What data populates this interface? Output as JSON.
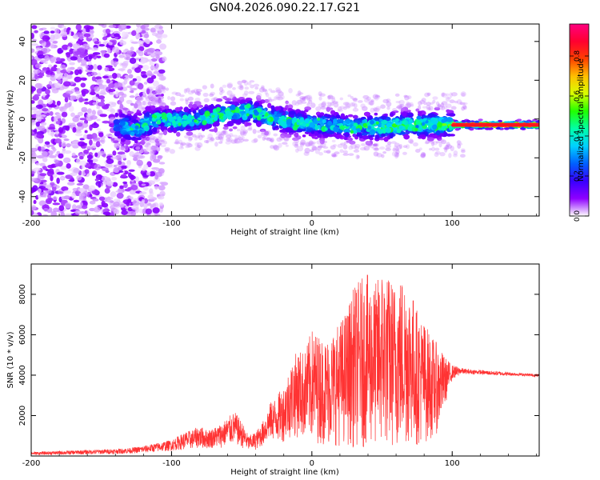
{
  "figure_title": "GN04.2026.090.22.17.G21",
  "chart_data": [
    {
      "type": "heatmap",
      "title": "GN04.2026.090.22.17.G21",
      "xlabel": "Height of straight line (km)",
      "ylabel": "Frequency (Hz)",
      "xlim": [
        -200,
        162
      ],
      "ylim": [
        -50,
        49
      ],
      "xticks": [
        -200,
        -100,
        0,
        100
      ],
      "yticks": [
        -40,
        -20,
        0,
        20,
        40
      ],
      "grid": false,
      "colorbar": {
        "label": "Normalized spectral amplitude",
        "range": [
          0,
          0.96
        ],
        "ticks": [
          "0.0",
          "0.2",
          "0.4",
          "0.6",
          "0.8"
        ],
        "ticks_values": [
          0,
          0.2,
          0.4,
          0.6,
          0.8
        ],
        "colormap": "rainbow",
        "stops": [
          "#ffffff",
          "#8e00ff",
          "#3800ff",
          "#0060ff",
          "#00d0ff",
          "#00ffa8",
          "#20ff00",
          "#d8ff00",
          "#ffc000",
          "#ff4000",
          "#ff0030",
          "#ff0080"
        ]
      },
      "ridge": {
        "description_points_x": [
          -200,
          -150,
          -125,
          -110,
          -95,
          -80,
          -60,
          -45,
          -30,
          -10,
          10,
          30,
          50,
          70,
          90,
          110,
          130,
          162
        ],
        "description_points_y": [
          0,
          -2,
          -5,
          0,
          -1,
          0,
          3,
          4,
          1,
          -2,
          -3,
          -4,
          -4,
          -3,
          -3,
          -3,
          -3,
          -3
        ]
      }
    },
    {
      "type": "line",
      "xlabel": "Height of straight line (km)",
      "ylabel": "SNR (10 * v/v)",
      "xlim": [
        -200,
        162
      ],
      "ylim": [
        0,
        9500
      ],
      "xticks": [
        -200,
        -100,
        0,
        100
      ],
      "yticks": [
        2000,
        4000,
        6000,
        8000
      ],
      "grid": false,
      "series": [
        {
          "color": "#ff3333",
          "x": [
            -200,
            -180,
            -160,
            -140,
            -130,
            -120,
            -110,
            -100,
            -95,
            -90,
            -85,
            -80,
            -75,
            -70,
            -65,
            -60,
            -55,
            -50,
            -45,
            -40,
            -35,
            -30,
            -25,
            -20,
            -15,
            -10,
            -5,
            0,
            5,
            10,
            15,
            20,
            25,
            30,
            35,
            40,
            45,
            50,
            55,
            60,
            65,
            70,
            75,
            80,
            85,
            90,
            95,
            100,
            105,
            110,
            120,
            130,
            140,
            150,
            162
          ],
          "envelope_max": [
            200,
            250,
            300,
            350,
            400,
            500,
            650,
            800,
            1000,
            1200,
            1300,
            1500,
            1300,
            1400,
            1600,
            1900,
            2200,
            1700,
            1000,
            1200,
            1700,
            2600,
            3000,
            3500,
            4600,
            5300,
            5200,
            6300,
            6000,
            5800,
            6200,
            6700,
            7300,
            8400,
            8800,
            9000,
            8500,
            9400,
            8900,
            8600,
            9100,
            8500,
            7300,
            6700,
            6000,
            5500,
            4900,
            4500,
            4400,
            4300,
            4250,
            4200,
            4150,
            4100,
            4050
          ],
          "envelope_min": [
            50,
            60,
            80,
            100,
            120,
            150,
            200,
            250,
            300,
            300,
            350,
            400,
            350,
            400,
            400,
            500,
            600,
            400,
            250,
            300,
            500,
            800,
            700,
            700,
            900,
            900,
            800,
            700,
            600,
            500,
            500,
            500,
            500,
            400,
            400,
            400,
            400,
            300,
            300,
            300,
            400,
            500,
            500,
            600,
            800,
            1200,
            2500,
            3800,
            3900,
            3950,
            3950,
            3900,
            3900,
            3900,
            3850
          ]
        }
      ]
    }
  ]
}
